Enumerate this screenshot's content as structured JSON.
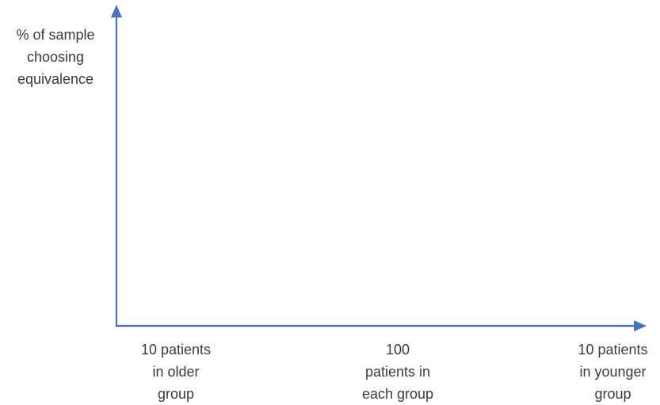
{
  "diagram": {
    "type": "axes",
    "axis_color": "#4472C4",
    "text_color": "#3a3a3a",
    "y_axis_label": [
      "% of sample",
      "choosing",
      "equivalence"
    ],
    "x_categories": [
      [
        "10 patients",
        "in older",
        "group"
      ],
      [
        "100",
        "patients in",
        "each group"
      ],
      [
        "10 patients",
        "in younger",
        "group"
      ]
    ]
  }
}
